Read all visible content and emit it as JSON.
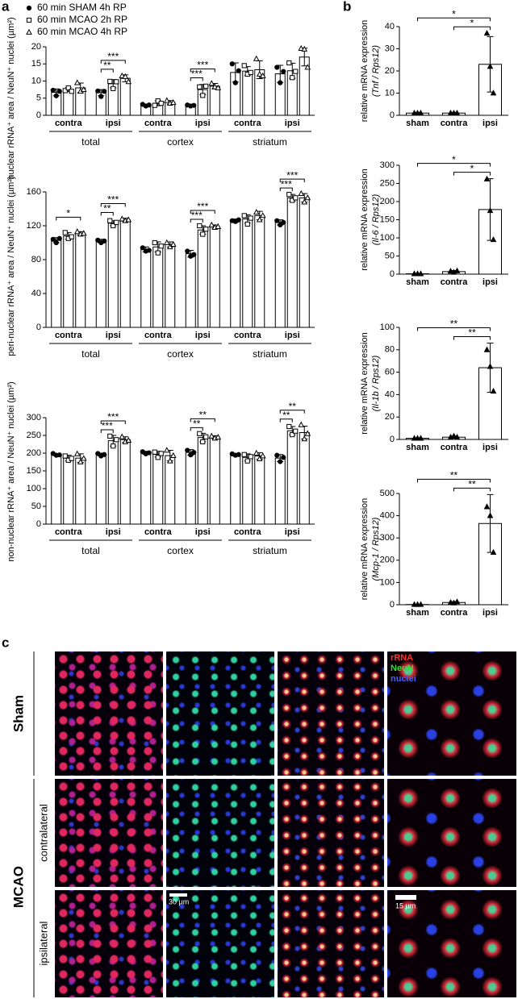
{
  "panel_labels": [
    "a",
    "b",
    "c"
  ],
  "chart_data": [
    {
      "type": "bar",
      "ylabel": "nuclear rRNA⁺ area / NeuN⁺ nuclei (µm²)",
      "legend": "upper left",
      "categories": [
        "contra",
        "ipsi",
        "contra",
        "ipsi",
        "contra",
        "ipsi"
      ],
      "groups": [
        "total",
        "cortex",
        "striatum"
      ],
      "ylim": [
        0,
        20
      ],
      "yticks": [
        0,
        5,
        10,
        15,
        20
      ],
      "series": [
        {
          "name": "60 min SHAM 4h RP",
          "marker": "circle",
          "filled": true,
          "values": [
            6.7,
            6.6,
            3.0,
            2.9,
            12.5,
            12.1
          ],
          "errors": [
            1.0,
            0.9,
            0.3,
            0.2,
            2.8,
            2.5
          ],
          "points": [
            [
              7.3,
              5.7,
              7.0
            ],
            [
              7.1,
              5.5,
              7.0
            ],
            [
              3.2,
              2.7,
              3.0
            ],
            [
              3.0,
              2.7,
              2.9
            ],
            [
              15.0,
              9.5,
              13.0
            ],
            [
              14.0,
              9.5,
              12.8
            ]
          ]
        },
        {
          "name": "60 min MCAO 2h RP",
          "marker": "square",
          "filled": false,
          "values": [
            7.5,
            9.2,
            3.5,
            7.5,
            12.9,
            13.0
          ],
          "errors": [
            0.6,
            1.2,
            0.7,
            1.5,
            1.3,
            2.2
          ],
          "points": [
            [
              7.2,
              8.0,
              7.0
            ],
            [
              9.9,
              7.8,
              9.8
            ],
            [
              2.9,
              4.2,
              3.5
            ],
            [
              8.3,
              5.8,
              8.5
            ],
            [
              14.5,
              12.0,
              12.5
            ],
            [
              15.3,
              11.0,
              12.8
            ]
          ]
        },
        {
          "name": "60 min MCAO 4h RP",
          "marker": "triangle",
          "filled": false,
          "values": [
            8.0,
            10.8,
            3.8,
            8.5,
            13.3,
            17.0
          ],
          "errors": [
            1.4,
            1.0,
            0.5,
            0.8,
            2.6,
            2.6
          ],
          "points": [
            [
              9.5,
              7.0,
              7.5
            ],
            [
              11.5,
              11.3,
              9.8
            ],
            [
              4.3,
              3.5,
              3.7
            ],
            [
              9.3,
              8.3,
              8.0
            ],
            [
              16.5,
              12.0,
              11.5
            ],
            [
              19.5,
              19.3,
              14.0
            ]
          ]
        }
      ],
      "significance": [
        {
          "label": "**",
          "category": 1,
          "from": 0,
          "to": 1
        },
        {
          "label": "***",
          "category": 1,
          "from": 0,
          "to": 2
        },
        {
          "label": "***",
          "category": 3,
          "from": 0,
          "to": 1
        },
        {
          "label": "***",
          "category": 3,
          "from": 0,
          "to": 2
        }
      ]
    },
    {
      "type": "bar",
      "ylabel": "peri-nuclear rRNA⁺ area / NeuN⁺ nuclei (µm²)",
      "categories": [
        "contra",
        "ipsi",
        "contra",
        "ipsi",
        "contra",
        "ipsi"
      ],
      "groups": [
        "total",
        "cortex",
        "striatum"
      ],
      "ylim": [
        0,
        160
      ],
      "yticks": [
        0,
        40,
        80,
        120,
        160
      ],
      "series": [
        {
          "marker": "circle",
          "filled": true,
          "values": [
            103,
            102,
            92,
            87,
            126,
            124
          ],
          "errors": [
            3,
            2,
            3,
            4,
            2,
            3
          ],
          "points": [
            [
              104,
              100,
              105
            ],
            [
              103,
              100,
              102
            ],
            [
              94,
              90,
              91
            ],
            [
              90,
              84,
              86
            ],
            [
              126,
              125,
              127
            ],
            [
              126,
              121,
              124
            ]
          ]
        },
        {
          "marker": "square",
          "filled": false,
          "values": [
            108,
            123,
            95,
            115,
            128,
            153
          ],
          "errors": [
            4,
            3,
            6,
            5,
            5,
            4
          ],
          "points": [
            [
              112,
              105,
              107
            ],
            [
              126,
              120,
              124
            ],
            [
              100,
              88,
              96
            ],
            [
              120,
              110,
              116
            ],
            [
              132,
              122,
              129
            ],
            [
              157,
              150,
              153
            ]
          ]
        },
        {
          "marker": "triangle",
          "filled": false,
          "values": [
            111,
            127,
            98,
            119,
            132,
            153
          ],
          "errors": [
            2,
            2,
            3,
            2,
            5,
            5
          ],
          "points": [
            [
              113,
              110,
              111
            ],
            [
              128,
              126,
              127
            ],
            [
              100,
              95,
              98
            ],
            [
              121,
              118,
              119
            ],
            [
              136,
              127,
              132
            ],
            [
              158,
              148,
              153
            ]
          ]
        }
      ],
      "significance": [
        {
          "label": "*",
          "category": 0,
          "from": 0,
          "to": 2
        },
        {
          "label": "**",
          "category": 1,
          "from": 0,
          "to": 1
        },
        {
          "label": "***",
          "category": 1,
          "from": 0,
          "to": 2
        },
        {
          "label": "***",
          "category": 3,
          "from": 0,
          "to": 1
        },
        {
          "label": "***",
          "category": 3,
          "from": 0,
          "to": 2
        },
        {
          "label": "***",
          "category": 5,
          "from": 0,
          "to": 1
        },
        {
          "label": "***",
          "category": 5,
          "from": 0,
          "to": 2
        }
      ]
    },
    {
      "type": "bar",
      "ylabel": "non-nuclear rRNA⁺ area / NeuN⁺ nuclei (µm²)",
      "categories": [
        "contra",
        "ipsi",
        "contra",
        "ipsi",
        "contra",
        "ipsi"
      ],
      "groups": [
        "total",
        "cortex",
        "striatum"
      ],
      "ylim": [
        0,
        300
      ],
      "yticks": [
        0,
        50,
        100,
        150,
        200,
        250,
        300
      ],
      "series": [
        {
          "marker": "circle",
          "filled": true,
          "values": [
            196,
            196,
            201,
            202,
            196,
            186
          ],
          "errors": [
            3,
            4,
            4,
            8,
            3,
            10
          ],
          "points": [
            [
              199,
              194,
              195
            ],
            [
              199,
              192,
              196
            ],
            [
              204,
              198,
              201
            ],
            [
              208,
              195,
              202
            ],
            [
              198,
              194,
              196
            ],
            [
              194,
              176,
              188
            ]
          ]
        },
        {
          "marker": "square",
          "filled": false,
          "values": [
            186,
            235,
            197,
            244,
            188,
            263
          ],
          "errors": [
            8,
            15,
            8,
            12,
            10,
            12
          ],
          "points": [
            [
              192,
              180,
              185
            ],
            [
              248,
              220,
              238
            ],
            [
              203,
              188,
              199
            ],
            [
              255,
              232,
              246
            ],
            [
              196,
              178,
              190
            ],
            [
              275,
              252,
              262
            ]
          ]
        },
        {
          "marker": "triangle",
          "filled": false,
          "values": [
            186,
            238,
            193,
            245,
            192,
            258
          ],
          "errors": [
            12,
            8,
            15,
            4,
            9,
            18
          ],
          "points": [
            [
              198,
              175,
              185
            ],
            [
              246,
              232,
              236
            ],
            [
              208,
              178,
              193
            ],
            [
              248,
              242,
              245
            ],
            [
              200,
              184,
              192
            ],
            [
              280,
              240,
              255
            ]
          ]
        }
      ],
      "significance": [
        {
          "label": "***",
          "category": 1,
          "from": 0,
          "to": 1
        },
        {
          "label": "***",
          "category": 1,
          "from": 0,
          "to": 2
        },
        {
          "label": "**",
          "category": 3,
          "from": 0,
          "to": 1
        },
        {
          "label": "**",
          "category": 3,
          "from": 0,
          "to": 2
        },
        {
          "label": "**",
          "category": 5,
          "from": 0,
          "to": 1
        },
        {
          "label": "**",
          "category": 5,
          "from": 0,
          "to": 2
        }
      ]
    },
    {
      "type": "bar",
      "ylabel": "relative mRNA expression",
      "ylabel_sub": "(Tnf / Rps12)",
      "categories": [
        "sham",
        "contra",
        "ipsi"
      ],
      "ylim": [
        0,
        40
      ],
      "yticks": [
        0,
        10,
        20,
        30,
        40
      ],
      "marker": "triangle",
      "filled": true,
      "values": [
        1,
        1,
        23
      ],
      "errors": [
        0.3,
        0.3,
        12.5
      ],
      "points": [
        [
          1,
          1,
          1
        ],
        [
          1,
          1,
          1
        ],
        [
          37,
          22,
          10
        ]
      ],
      "significance": [
        {
          "label": "*",
          "from": 0,
          "to": 2
        },
        {
          "label": "*",
          "from": 1,
          "to": 2
        }
      ]
    },
    {
      "type": "bar",
      "ylabel": "relative mRNA expression",
      "ylabel_sub": "(Il-6 / Rps12)",
      "categories": [
        "sham",
        "contra",
        "ipsi"
      ],
      "ylim": [
        0,
        300
      ],
      "yticks": [
        0,
        50,
        100,
        150,
        200,
        250,
        300
      ],
      "marker": "triangle",
      "filled": true,
      "values": [
        1,
        7,
        178
      ],
      "errors": [
        1,
        3,
        85
      ],
      "points": [
        [
          1,
          1,
          1
        ],
        [
          8,
          5,
          9
        ],
        [
          262,
          175,
          95
        ]
      ],
      "significance": [
        {
          "label": "*",
          "from": 0,
          "to": 2
        },
        {
          "label": "*",
          "from": 1,
          "to": 2
        }
      ]
    },
    {
      "type": "bar",
      "ylabel": "relative mRNA expression",
      "ylabel_sub": "(Il-1b / Rps12)",
      "categories": [
        "sham",
        "contra",
        "ipsi"
      ],
      "ylim": [
        0,
        100
      ],
      "yticks": [
        0,
        20,
        40,
        60,
        80,
        100
      ],
      "marker": "triangle",
      "filled": true,
      "values": [
        1,
        2,
        64
      ],
      "errors": [
        0.5,
        1,
        22
      ],
      "points": [
        [
          1,
          1,
          1
        ],
        [
          2,
          3,
          2
        ],
        [
          80,
          65,
          43
        ]
      ],
      "significance": [
        {
          "label": "**",
          "from": 0,
          "to": 2
        },
        {
          "label": "**",
          "from": 1,
          "to": 2
        }
      ]
    },
    {
      "type": "bar",
      "ylabel": "relative mRNA expression",
      "ylabel_sub": "(Mcp-1 / Rps12)",
      "categories": [
        "sham",
        "contra",
        "ipsi"
      ],
      "ylim": [
        0,
        500
      ],
      "yticks": [
        0,
        100,
        200,
        300,
        400,
        500
      ],
      "marker": "triangle",
      "filled": true,
      "values": [
        1,
        10,
        365
      ],
      "errors": [
        1,
        4,
        130
      ],
      "points": [
        [
          1,
          1,
          1
        ],
        [
          10,
          8,
          13
        ],
        [
          440,
          400,
          235
        ]
      ],
      "significance": [
        {
          "label": "**",
          "from": 0,
          "to": 2
        },
        {
          "label": "**",
          "from": 1,
          "to": 2
        }
      ]
    }
  ],
  "panel_c": {
    "rows": [
      "Sham",
      "contralateral",
      "ipsilateral"
    ],
    "group_label": "MCAO",
    "channels": [
      "rRNA",
      "NeuN",
      "nuclei"
    ],
    "scale_bars": [
      "30 µm",
      "15 µm"
    ]
  }
}
